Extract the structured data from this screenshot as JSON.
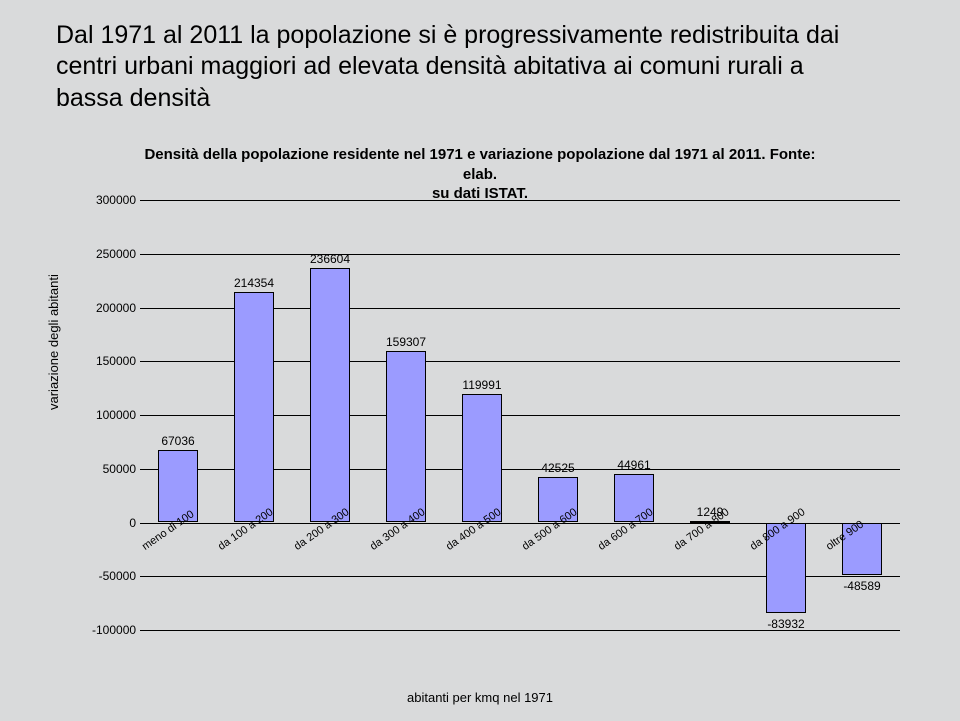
{
  "title": {
    "line1": "Dal 1971 al 2011 la popolazione si è progressivamente redistribuita dai",
    "line2": "centri urbani maggiori ad elevata densità abitativa ai comuni rurali a",
    "line3": "bassa densità"
  },
  "subtitle": {
    "line1": "Densità della popolazione residente nel 1971 e variazione popolazione dal 1971 al 2011. Fonte: elab.",
    "line2": "su dati ISTAT."
  },
  "chart": {
    "type": "bar",
    "ylabel": "variazione degli abitanti",
    "xlabel": "abitanti per kmq nel 1971",
    "ylim_min": -100000,
    "ylim_max": 300000,
    "ytick_step": 50000,
    "background": "#d9dadb",
    "grid_color": "#000000",
    "bar_color": "#9b9bff",
    "bar_border": "#000000",
    "categories": [
      "meno di 100",
      "da 100 a 200",
      "da 200 a 300",
      "da 300 a 400",
      "da 400 a 500",
      "da 500 a 600",
      "da 600 a 700",
      "da 700 a 800",
      "da 800 a 900",
      "oltre 900"
    ],
    "values": [
      67036,
      214354,
      236604,
      159307,
      119991,
      42525,
      44961,
      1249,
      -83932,
      -48589
    ]
  }
}
